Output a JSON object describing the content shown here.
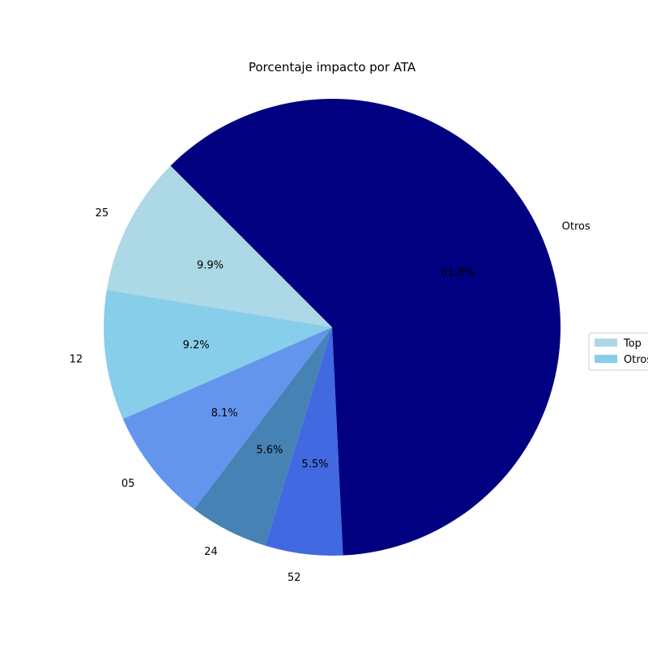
{
  "chart_data": {
    "type": "pie",
    "title": "Porcentaje impacto por ATA",
    "slices": [
      {
        "label": "25",
        "value": 9.9,
        "pct_label": "9.9%",
        "color": "#ADD8E6"
      },
      {
        "label": "12",
        "value": 9.2,
        "pct_label": "9.2%",
        "color": "#87CEEB"
      },
      {
        "label": "05",
        "value": 8.1,
        "pct_label": "8.1%",
        "color": "#6495ED"
      },
      {
        "label": "24",
        "value": 5.6,
        "pct_label": "5.6%",
        "color": "#4682B4"
      },
      {
        "label": "52",
        "value": 5.5,
        "pct_label": "5.5%",
        "color": "#4169E1"
      },
      {
        "label": "Otros",
        "value": 61.8,
        "pct_label": "61.8%",
        "color": "#000080"
      }
    ],
    "start_angle_deg": 135,
    "direction": "counterclockwise",
    "legend": {
      "placement": "right",
      "entries": [
        {
          "label": "Top",
          "color": "#ADD8E6"
        },
        {
          "label": "Otros",
          "color": "#87CEEB"
        }
      ]
    }
  }
}
